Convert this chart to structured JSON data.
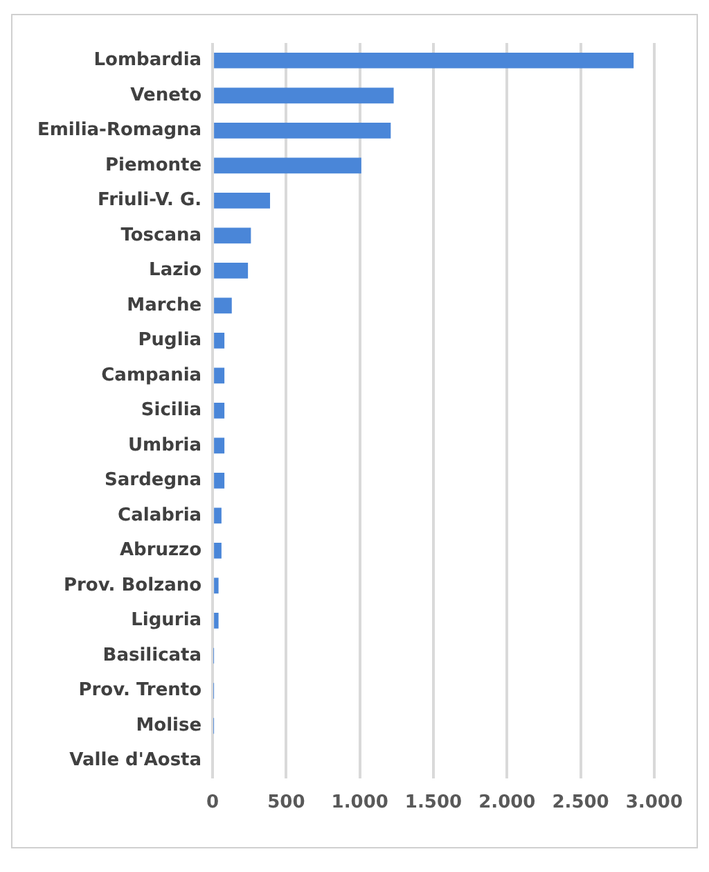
{
  "chart_data": {
    "type": "bar",
    "orientation": "horizontal",
    "categories": [
      "Lombardia",
      "Veneto",
      "Emilia-Romagna",
      "Piemonte",
      "Friuli-V. G.",
      "Toscana",
      "Lazio",
      "Marche",
      "Puglia",
      "Campania",
      "Sicilia",
      "Umbria",
      "Sardegna",
      "Calabria",
      "Abruzzo",
      "Prov. Bolzano",
      "Liguria",
      "Basilicata",
      "Prov. Trento",
      "Molise",
      "Valle d'Aosta"
    ],
    "values": [
      2860,
      1230,
      1210,
      1010,
      390,
      260,
      240,
      130,
      80,
      80,
      80,
      80,
      80,
      60,
      60,
      40,
      40,
      5,
      5,
      5,
      0
    ],
    "color": "#4a86d8",
    "xlim": [
      0,
      3000
    ],
    "xticks": [
      0,
      {
        "value": 500,
        "label": "500"
      },
      {
        "value": 1000,
        "label": "1.000"
      },
      {
        "value": 1500,
        "label": "1.500"
      },
      {
        "value": 2000,
        "label": "2.000"
      },
      {
        "value": 2500,
        "label": "2.500"
      },
      {
        "value": 3000,
        "label": "3.000"
      }
    ],
    "grid": "x",
    "legend": false
  }
}
